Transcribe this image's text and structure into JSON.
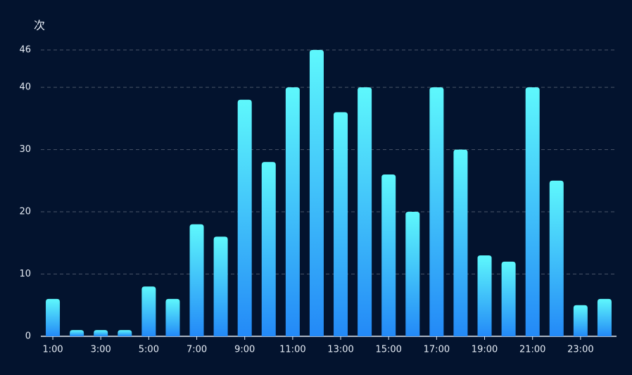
{
  "chart_data": {
    "type": "bar",
    "y_axis_label": "次",
    "categories": [
      "1:00",
      null,
      "3:00",
      null,
      "5:00",
      null,
      "7:00",
      null,
      "9:00",
      null,
      "11:00",
      null,
      "13:00",
      null,
      "15:00",
      null,
      "17:00",
      null,
      "19:00",
      null,
      "21:00",
      null,
      "23:00",
      null
    ],
    "values": [
      6,
      1,
      1,
      1,
      8,
      6,
      18,
      16,
      38,
      28,
      40,
      46,
      36,
      40,
      26,
      20,
      40,
      30,
      13,
      12,
      40,
      25,
      5,
      6
    ],
    "color": [
      "#5ef8fc",
      "#2389f7"
    ],
    "ylim": [
      0,
      46
    ],
    "yticks": [
      0,
      10,
      20,
      30,
      40,
      46
    ],
    "grid": true
  }
}
